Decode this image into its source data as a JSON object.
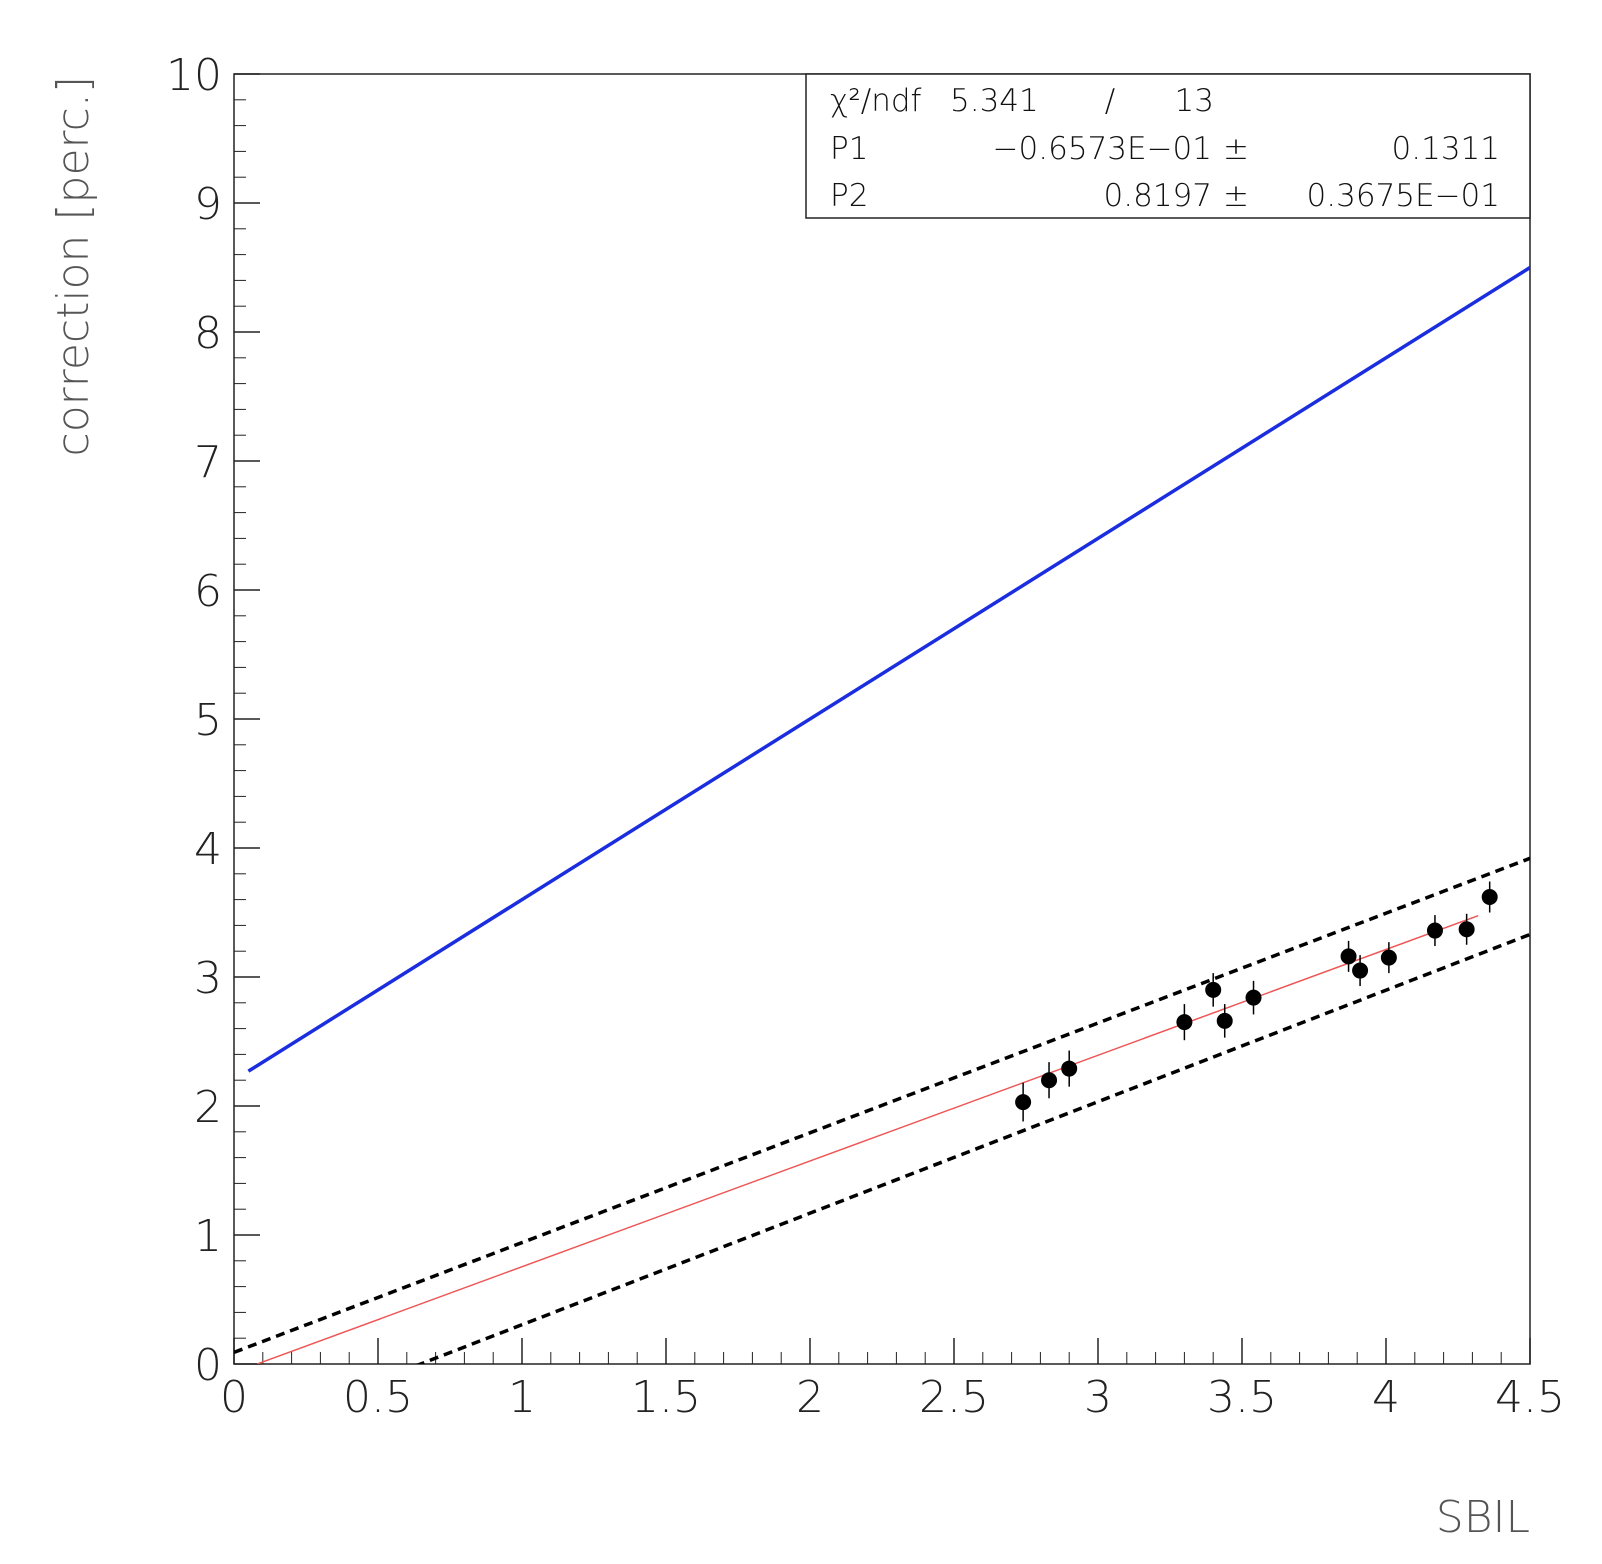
{
  "chart_data": {
    "type": "scatter",
    "xlabel": "SBIL",
    "ylabel": "correction [perc.]",
    "xlim": [
      0,
      4.5
    ],
    "ylim": [
      0,
      10
    ],
    "x_ticks": [
      "0",
      "0.5",
      "1",
      "1.5",
      "2",
      "2.5",
      "3",
      "3.5",
      "4",
      "4.5"
    ],
    "y_ticks": [
      "0",
      "1",
      "2",
      "3",
      "4",
      "5",
      "6",
      "7",
      "8",
      "9",
      "10"
    ],
    "grid": false,
    "points": {
      "x": [
        2.74,
        2.83,
        2.9,
        3.3,
        3.4,
        3.44,
        3.54,
        3.87,
        3.91,
        4.01,
        4.17,
        4.28,
        4.36
      ],
      "y": [
        2.03,
        2.2,
        2.29,
        2.65,
        2.9,
        2.66,
        2.84,
        3.16,
        3.05,
        3.15,
        3.36,
        3.37,
        3.62
      ],
      "yerr": [
        0.15,
        0.14,
        0.14,
        0.14,
        0.13,
        0.13,
        0.13,
        0.12,
        0.12,
        0.12,
        0.12,
        0.12,
        0.12
      ],
      "xerr": [
        0.025,
        0.025,
        0.025,
        0.025,
        0.025,
        0.025,
        0.025,
        0.025,
        0.025,
        0.025,
        0.025,
        0.025,
        0.025
      ],
      "color": "#000000"
    },
    "fit_line": {
      "intercept": -0.06573,
      "slope": 0.8197,
      "x_range": [
        0.08,
        4.32
      ],
      "color": "#ee5555"
    },
    "band_upper": {
      "points": [
        [
          0,
          0.09
        ],
        [
          4.5,
          3.92
        ]
      ],
      "color": "#000000",
      "dash": true
    },
    "band_lower": {
      "points": [
        [
          0,
          -0.56
        ],
        [
          4.5,
          3.33
        ]
      ],
      "color": "#000000",
      "dash": true
    },
    "blue_line": {
      "points": [
        [
          0.05,
          2.27
        ],
        [
          4.5,
          8.5
        ]
      ],
      "color": "#1a2ee0"
    },
    "stats_box": {
      "position": "top-right",
      "rows": [
        {
          "label": "χ²/ndf",
          "value": "5.341",
          "sep": "/",
          "error": "13"
        },
        {
          "label": "P1",
          "value": "−0.6573E−01",
          "sep": "±",
          "error": "0.1311"
        },
        {
          "label": "P2",
          "value": "0.8197",
          "sep": "±",
          "error": "0.3675E−01"
        }
      ]
    }
  }
}
